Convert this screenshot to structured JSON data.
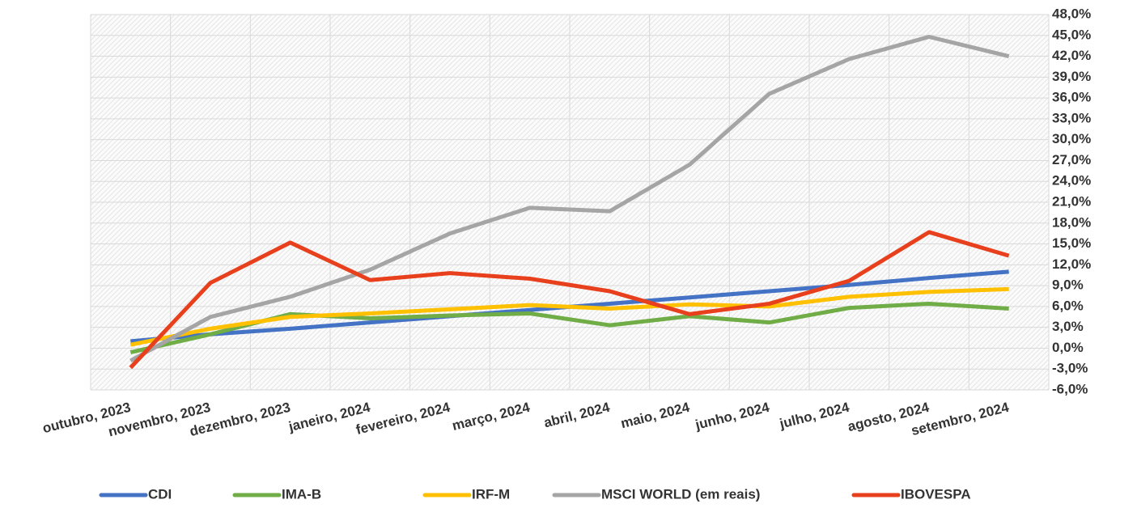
{
  "chart_data": {
    "type": "line",
    "categories": [
      "outubro, 2023",
      "novembro, 2023",
      "dezembro, 2023",
      "janeiro, 2024",
      "fevereiro, 2024",
      "março, 2024",
      "abril, 2024",
      "maio, 2024",
      "junho, 2024",
      "julho, 2024",
      "agosto, 2024",
      "setembro, 2024"
    ],
    "series": [
      {
        "name": "CDI",
        "color": "#4472c4",
        "values": [
          1.0,
          2.0,
          2.8,
          3.7,
          4.6,
          5.5,
          6.4,
          7.3,
          8.2,
          9.1,
          10.1,
          11.0
        ]
      },
      {
        "name": "IMA-B",
        "color": "#70ad47",
        "values": [
          -0.6,
          2.0,
          4.9,
          4.3,
          4.7,
          5.0,
          3.3,
          4.6,
          3.7,
          5.8,
          6.4,
          5.7
        ]
      },
      {
        "name": "IRF-M",
        "color": "#ffc000",
        "values": [
          0.5,
          2.8,
          4.5,
          5.0,
          5.6,
          6.2,
          5.7,
          6.3,
          6.0,
          7.4,
          8.1,
          8.5
        ]
      },
      {
        "name": "MSCI WORLD (em reais)",
        "color": "#a5a5a5",
        "values": [
          -1.8,
          4.5,
          7.4,
          11.3,
          16.5,
          20.2,
          19.7,
          26.4,
          36.6,
          41.6,
          44.8,
          42.0
        ]
      },
      {
        "name": "IBOVESPA",
        "color": "#e8401c",
        "values": [
          -2.8,
          9.4,
          15.2,
          9.8,
          10.8,
          10.0,
          8.2,
          4.9,
          6.4,
          9.7,
          16.7,
          13.3
        ]
      }
    ],
    "ylim": [
      -6,
      48
    ],
    "yticks": [
      {
        "value": -6,
        "label": "-6,0%"
      },
      {
        "value": -3,
        "label": "-3,0%"
      },
      {
        "value": 0,
        "label": "0,0%"
      },
      {
        "value": 3,
        "label": "3,0%"
      },
      {
        "value": 6,
        "label": "6,0%"
      },
      {
        "value": 9,
        "label": "9,0%"
      },
      {
        "value": 12,
        "label": "12,0%"
      },
      {
        "value": 15,
        "label": "15,0%"
      },
      {
        "value": 18,
        "label": "18,0%"
      },
      {
        "value": 21,
        "label": "21,0%"
      },
      {
        "value": 24,
        "label": "24,0%"
      },
      {
        "value": 27,
        "label": "27,0%"
      },
      {
        "value": 30,
        "label": "30,0%"
      },
      {
        "value": 33,
        "label": "33,0%"
      },
      {
        "value": 36,
        "label": "36,0%"
      },
      {
        "value": 39,
        "label": "39,0%"
      },
      {
        "value": 42,
        "label": "42,0%"
      },
      {
        "value": 45,
        "label": "45,0%"
      },
      {
        "value": 48,
        "label": "48,0%"
      }
    ],
    "grid": true,
    "legend": "bottom"
  }
}
